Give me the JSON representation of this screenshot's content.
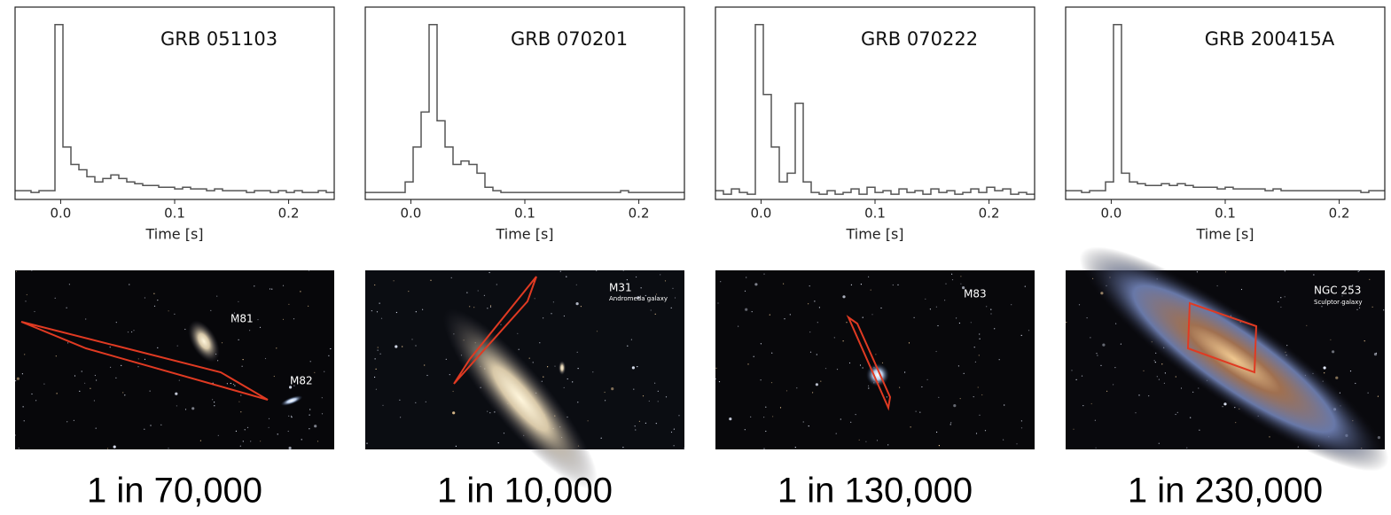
{
  "chart_data": [
    {
      "type": "step",
      "title": "GRB 051103",
      "x_label": "Time [s]",
      "xlim": [
        -0.04,
        0.24
      ],
      "ylim": [
        0,
        1.1
      ],
      "xticks": [
        {
          "value": 0,
          "label": "0.0"
        },
        {
          "value": 0.1,
          "label": "0.1"
        },
        {
          "value": 0.2,
          "label": "0.2"
        }
      ],
      "color": "#555555",
      "x": [
        -0.04,
        -0.033,
        -0.026,
        -0.019,
        -0.012,
        -0.005,
        0.002,
        0.009,
        0.016,
        0.023,
        0.03,
        0.037,
        0.044,
        0.051,
        0.058,
        0.065,
        0.072,
        0.079,
        0.086,
        0.093,
        0.1,
        0.107,
        0.114,
        0.121,
        0.128,
        0.135,
        0.142,
        0.149,
        0.156,
        0.163,
        0.17,
        0.177,
        0.184,
        0.191,
        0.198,
        0.205,
        0.212,
        0.219,
        0.226,
        0.233
      ],
      "values": [
        0.05,
        0.05,
        0.04,
        0.05,
        0.05,
        1.0,
        0.3,
        0.2,
        0.17,
        0.13,
        0.1,
        0.12,
        0.14,
        0.12,
        0.1,
        0.09,
        0.08,
        0.08,
        0.07,
        0.07,
        0.06,
        0.07,
        0.06,
        0.06,
        0.05,
        0.06,
        0.05,
        0.05,
        0.05,
        0.04,
        0.05,
        0.05,
        0.04,
        0.05,
        0.04,
        0.05,
        0.04,
        0.04,
        0.05,
        0.04
      ]
    },
    {
      "type": "step",
      "title": "GRB 070201",
      "x_label": "Time [s]",
      "xlim": [
        -0.04,
        0.24
      ],
      "ylim": [
        0,
        1.1
      ],
      "xticks": [
        {
          "value": 0,
          "label": "0.0"
        },
        {
          "value": 0.1,
          "label": "0.1"
        },
        {
          "value": 0.2,
          "label": "0.2"
        }
      ],
      "color": "#555555",
      "x": [
        -0.04,
        -0.033,
        -0.026,
        -0.019,
        -0.012,
        -0.005,
        0.002,
        0.009,
        0.016,
        0.023,
        0.03,
        0.037,
        0.044,
        0.051,
        0.058,
        0.065,
        0.072,
        0.079,
        0.086,
        0.093,
        0.1,
        0.107,
        0.114,
        0.121,
        0.128,
        0.135,
        0.142,
        0.149,
        0.156,
        0.163,
        0.17,
        0.177,
        0.184,
        0.191,
        0.198,
        0.205,
        0.212,
        0.219,
        0.226,
        0.233
      ],
      "values": [
        0.04,
        0.04,
        0.04,
        0.04,
        0.04,
        0.1,
        0.3,
        0.5,
        1.0,
        0.45,
        0.3,
        0.2,
        0.22,
        0.2,
        0.15,
        0.07,
        0.05,
        0.04,
        0.04,
        0.04,
        0.04,
        0.04,
        0.04,
        0.04,
        0.04,
        0.04,
        0.04,
        0.04,
        0.04,
        0.04,
        0.04,
        0.04,
        0.05,
        0.04,
        0.04,
        0.04,
        0.04,
        0.04,
        0.04,
        0.04
      ]
    },
    {
      "type": "step",
      "title": "GRB 070222",
      "x_label": "Time [s]",
      "xlim": [
        -0.04,
        0.24
      ],
      "ylim": [
        0,
        1.1
      ],
      "xticks": [
        {
          "value": 0,
          "label": "0.0"
        },
        {
          "value": 0.1,
          "label": "0.1"
        },
        {
          "value": 0.2,
          "label": "0.2"
        }
      ],
      "color": "#555555",
      "x": [
        -0.04,
        -0.033,
        -0.026,
        -0.019,
        -0.012,
        -0.005,
        0.002,
        0.009,
        0.016,
        0.023,
        0.03,
        0.037,
        0.044,
        0.051,
        0.058,
        0.065,
        0.072,
        0.079,
        0.086,
        0.093,
        0.1,
        0.107,
        0.114,
        0.121,
        0.128,
        0.135,
        0.142,
        0.149,
        0.156,
        0.163,
        0.17,
        0.177,
        0.184,
        0.191,
        0.198,
        0.205,
        0.212,
        0.219,
        0.226,
        0.233
      ],
      "values": [
        0.05,
        0.03,
        0.06,
        0.04,
        0.03,
        1.0,
        0.6,
        0.3,
        0.1,
        0.15,
        0.55,
        0.1,
        0.04,
        0.03,
        0.05,
        0.03,
        0.04,
        0.06,
        0.03,
        0.07,
        0.04,
        0.05,
        0.03,
        0.06,
        0.04,
        0.05,
        0.03,
        0.06,
        0.04,
        0.05,
        0.03,
        0.04,
        0.06,
        0.04,
        0.07,
        0.05,
        0.06,
        0.03,
        0.04,
        0.03
      ]
    },
    {
      "type": "step",
      "title": "GRB 200415A",
      "x_label": "Time [s]",
      "xlim": [
        -0.04,
        0.24
      ],
      "ylim": [
        0,
        1.1
      ],
      "xticks": [
        {
          "value": 0,
          "label": "0.0"
        },
        {
          "value": 0.1,
          "label": "0.1"
        },
        {
          "value": 0.2,
          "label": "0.2"
        }
      ],
      "color": "#555555",
      "x": [
        -0.04,
        -0.033,
        -0.026,
        -0.019,
        -0.012,
        -0.005,
        0.002,
        0.009,
        0.016,
        0.023,
        0.03,
        0.037,
        0.044,
        0.051,
        0.058,
        0.065,
        0.072,
        0.079,
        0.086,
        0.093,
        0.1,
        0.107,
        0.114,
        0.121,
        0.128,
        0.135,
        0.142,
        0.149,
        0.156,
        0.163,
        0.17,
        0.177,
        0.184,
        0.191,
        0.198,
        0.205,
        0.212,
        0.219,
        0.226,
        0.233
      ],
      "values": [
        0.05,
        0.05,
        0.04,
        0.05,
        0.05,
        0.1,
        1.0,
        0.15,
        0.1,
        0.09,
        0.08,
        0.08,
        0.09,
        0.08,
        0.09,
        0.08,
        0.07,
        0.07,
        0.07,
        0.06,
        0.07,
        0.06,
        0.06,
        0.06,
        0.06,
        0.05,
        0.06,
        0.05,
        0.05,
        0.05,
        0.05,
        0.05,
        0.05,
        0.05,
        0.05,
        0.05,
        0.05,
        0.04,
        0.05,
        0.05
      ]
    }
  ],
  "panels": [
    {
      "labels": [
        "M81",
        "M82"
      ],
      "caption": "1 in 70,000"
    },
    {
      "labels": [
        "M31",
        "Andromeda galaxy"
      ],
      "caption": "1 in 10,000"
    },
    {
      "labels": [
        "M83"
      ],
      "caption": "1 in 130,000"
    },
    {
      "labels": [
        "NGC 253",
        "Sculptor galaxy"
      ],
      "caption": "1 in 230,000"
    }
  ]
}
